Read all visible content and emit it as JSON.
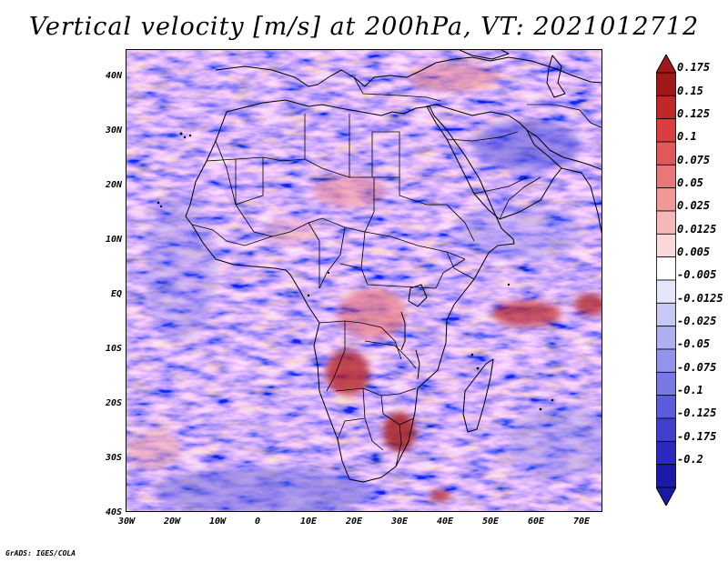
{
  "title": "Vertical velocity [m/s] at 200hPa, VT: 2021012712",
  "credit": "GrADS: IGES/COLA",
  "lat_labels": [
    "40N",
    "30N",
    "20N",
    "10N",
    "EQ",
    "10S",
    "20S",
    "30S",
    "40S"
  ],
  "lon_labels": [
    "30W",
    "20W",
    "10W",
    "0",
    "10E",
    "20E",
    "30E",
    "40E",
    "50E",
    "60E",
    "70E"
  ],
  "colorbar": {
    "labels": [
      "0.175",
      "0.15",
      "0.125",
      "0.1",
      "0.075",
      "0.05",
      "0.025",
      "0.0125",
      "0.005",
      "-0.005",
      "-0.0125",
      "-0.025",
      "-0.05",
      "-0.075",
      "-0.1",
      "-0.125",
      "-0.175",
      "-0.2"
    ],
    "colors": [
      "#a01818",
      "#c02828",
      "#d84040",
      "#e05858",
      "#e87878",
      "#f09898",
      "#f4b8b8",
      "#f8d8d8",
      "#ffffff",
      "#e6e6fa",
      "#c8c8f4",
      "#aeaef0",
      "#9494ec",
      "#7878e4",
      "#5c5cdc",
      "#4040d0",
      "#2a2ac0",
      "#1a1aa8"
    ]
  }
}
